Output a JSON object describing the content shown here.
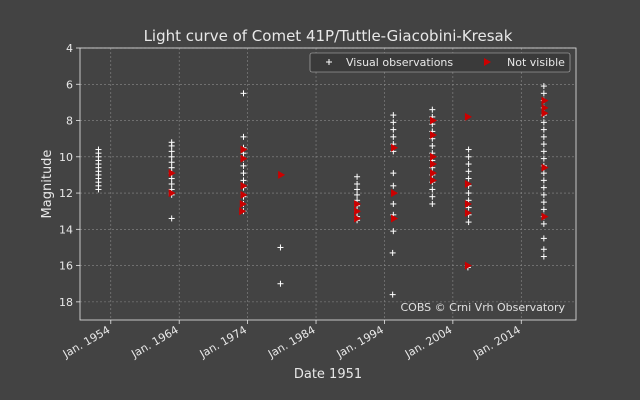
{
  "chart_data": {
    "type": "scatter",
    "title": "Light curve of Comet 41P/Tuttle-Giacobini-Kresak",
    "xlabel": "Date 1951",
    "ylabel": "Magnitude",
    "x_ticks": [
      "Jan. 1954",
      "Jan. 1964",
      "Jan. 1974",
      "Jan. 1984",
      "Jan. 1994",
      "Jan. 2004",
      "Jan. 2014"
    ],
    "x_tick_years": [
      1954,
      1964,
      1974,
      1984,
      1994,
      2004,
      2014
    ],
    "xlim": [
      1949.5,
      2022.0
    ],
    "y_ticks": [
      4,
      6,
      8,
      10,
      12,
      14,
      16,
      18
    ],
    "ylim": [
      19,
      4
    ],
    "y_inverted": true,
    "grid": true,
    "legend_position": "top-right",
    "credit": "COBS © Crni Vrh Observatory",
    "colors": {
      "visual": "#ffffff",
      "not_visible": "#cc0000"
    },
    "series": [
      {
        "name": "Visual observations",
        "marker": "plus",
        "points": [
          [
            1952.2,
            9.6
          ],
          [
            1952.2,
            9.8
          ],
          [
            1952.2,
            10.0
          ],
          [
            1952.2,
            10.2
          ],
          [
            1952.2,
            10.4
          ],
          [
            1952.2,
            10.6
          ],
          [
            1952.2,
            10.8
          ],
          [
            1952.2,
            11.0
          ],
          [
            1952.2,
            11.2
          ],
          [
            1952.2,
            11.4
          ],
          [
            1952.2,
            11.6
          ],
          [
            1952.2,
            11.8
          ],
          [
            1962.9,
            9.2
          ],
          [
            1962.9,
            9.4
          ],
          [
            1962.9,
            9.7
          ],
          [
            1962.9,
            10.0
          ],
          [
            1962.9,
            10.3
          ],
          [
            1962.9,
            10.6
          ],
          [
            1962.9,
            10.9
          ],
          [
            1962.9,
            11.2
          ],
          [
            1962.9,
            11.5
          ],
          [
            1962.9,
            11.8
          ],
          [
            1962.9,
            12.1
          ],
          [
            1962.9,
            13.4
          ],
          [
            1973.4,
            6.5
          ],
          [
            1973.4,
            8.9
          ],
          [
            1973.4,
            9.5
          ],
          [
            1973.4,
            9.8
          ],
          [
            1973.4,
            10.1
          ],
          [
            1973.4,
            10.5
          ],
          [
            1973.4,
            10.9
          ],
          [
            1973.4,
            11.3
          ],
          [
            1973.4,
            11.7
          ],
          [
            1973.4,
            12.2
          ],
          [
            1973.4,
            12.6
          ],
          [
            1973.4,
            13.0
          ],
          [
            1978.8,
            15.0
          ],
          [
            1978.8,
            17.0
          ],
          [
            1990.0,
            11.1
          ],
          [
            1990.0,
            11.5
          ],
          [
            1990.0,
            11.8
          ],
          [
            1990.0,
            12.1
          ],
          [
            1990.0,
            12.4
          ],
          [
            1990.0,
            12.7
          ],
          [
            1990.0,
            13.0
          ],
          [
            1990.0,
            13.3
          ],
          [
            1990.0,
            13.5
          ],
          [
            1995.3,
            7.7
          ],
          [
            1995.3,
            8.1
          ],
          [
            1995.3,
            8.5
          ],
          [
            1995.3,
            8.9
          ],
          [
            1995.3,
            9.3
          ],
          [
            1995.3,
            9.7
          ],
          [
            1995.3,
            10.9
          ],
          [
            1995.3,
            11.6
          ],
          [
            1995.3,
            12.6
          ],
          [
            1995.3,
            13.2
          ],
          [
            1995.3,
            14.1
          ],
          [
            1995.2,
            15.3
          ],
          [
            1995.2,
            17.6
          ],
          [
            2001.0,
            7.4
          ],
          [
            2001.0,
            7.8
          ],
          [
            2001.0,
            8.2
          ],
          [
            2001.0,
            8.6
          ],
          [
            2001.0,
            9.0
          ],
          [
            2001.0,
            9.4
          ],
          [
            2001.0,
            9.8
          ],
          [
            2001.0,
            10.2
          ],
          [
            2001.0,
            10.6
          ],
          [
            2001.0,
            11.0
          ],
          [
            2001.0,
            11.4
          ],
          [
            2001.0,
            11.8
          ],
          [
            2001.0,
            12.2
          ],
          [
            2001.0,
            12.6
          ],
          [
            2006.3,
            9.6
          ],
          [
            2006.3,
            10.0
          ],
          [
            2006.3,
            10.4
          ],
          [
            2006.3,
            10.8
          ],
          [
            2006.3,
            11.2
          ],
          [
            2006.3,
            11.6
          ],
          [
            2006.3,
            12.0
          ],
          [
            2006.3,
            12.4
          ],
          [
            2006.3,
            12.8
          ],
          [
            2006.3,
            13.2
          ],
          [
            2006.3,
            13.6
          ],
          [
            2006.2,
            16.1
          ],
          [
            2017.3,
            6.1
          ],
          [
            2017.3,
            6.5
          ],
          [
            2017.3,
            6.9
          ],
          [
            2017.3,
            7.3
          ],
          [
            2017.3,
            7.7
          ],
          [
            2017.3,
            8.1
          ],
          [
            2017.3,
            8.5
          ],
          [
            2017.3,
            8.9
          ],
          [
            2017.3,
            9.3
          ],
          [
            2017.3,
            9.7
          ],
          [
            2017.3,
            10.1
          ],
          [
            2017.3,
            10.5
          ],
          [
            2017.3,
            10.9
          ],
          [
            2017.3,
            11.3
          ],
          [
            2017.3,
            11.7
          ],
          [
            2017.3,
            12.1
          ],
          [
            2017.3,
            12.5
          ],
          [
            2017.3,
            12.9
          ],
          [
            2017.3,
            13.3
          ],
          [
            2017.3,
            13.7
          ],
          [
            2017.3,
            14.5
          ],
          [
            2017.3,
            15.1
          ],
          [
            2017.3,
            15.5
          ]
        ]
      },
      {
        "name": "Not visible",
        "marker": "triangle-right",
        "points": [
          [
            1962.9,
            10.9
          ],
          [
            1962.9,
            12.0
          ],
          [
            1973.4,
            9.6
          ],
          [
            1973.4,
            10.1
          ],
          [
            1973.4,
            11.6
          ],
          [
            1973.4,
            12.1
          ],
          [
            1973.3,
            12.6
          ],
          [
            1973.2,
            13.0
          ],
          [
            1978.9,
            11.0
          ],
          [
            1990.0,
            12.6
          ],
          [
            1990.0,
            13.0
          ],
          [
            1990.0,
            13.4
          ],
          [
            1995.4,
            9.5
          ],
          [
            1995.4,
            12.0
          ],
          [
            1995.4,
            13.4
          ],
          [
            2001.1,
            8.0
          ],
          [
            2001.1,
            8.8
          ],
          [
            2001.1,
            10.0
          ],
          [
            2001.1,
            10.4
          ],
          [
            2001.1,
            10.9
          ],
          [
            2001.1,
            11.3
          ],
          [
            2006.2,
            7.8
          ],
          [
            2006.2,
            11.5
          ],
          [
            2006.2,
            12.6
          ],
          [
            2006.2,
            13.1
          ],
          [
            2006.2,
            16.0
          ],
          [
            2017.4,
            6.9
          ],
          [
            2017.4,
            7.3
          ],
          [
            2017.4,
            7.6
          ],
          [
            2017.4,
            10.6
          ],
          [
            2017.4,
            13.3
          ]
        ]
      }
    ]
  }
}
